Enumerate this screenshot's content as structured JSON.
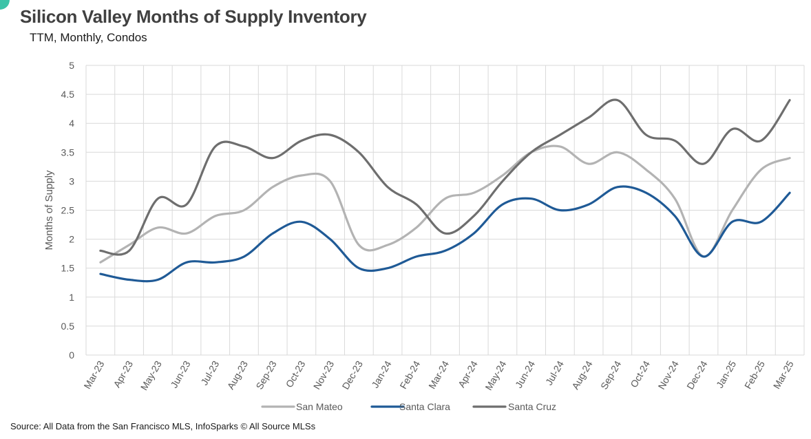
{
  "chart_data": {
    "type": "line",
    "title": "Silicon Valley Months of Supply Inventory",
    "subtitle": "TTM, Monthly, Condos",
    "ylabel": "Months of Supply",
    "xlabel": "",
    "ylim": [
      0,
      5
    ],
    "yticks": [
      "0",
      "0.5",
      "1",
      "1.5",
      "2",
      "2.5",
      "3",
      "3.5",
      "4",
      "4.5",
      "5"
    ],
    "grid": true,
    "legend_position": "bottom",
    "categories": [
      "Mar-23",
      "Apr-23",
      "May-23",
      "Jun-23",
      "Jul-23",
      "Aug-23",
      "Sep-23",
      "Oct-23",
      "Nov-23",
      "Dec-23",
      "Jan-24",
      "Feb-24",
      "Mar-24",
      "Apr-24",
      "May-24",
      "Jun-24",
      "Jul-24",
      "Aug-24",
      "Sep-24",
      "Oct-24",
      "Nov-24",
      "Dec-24",
      "Jan-25",
      "Feb-25",
      "Mar-25"
    ],
    "series": [
      {
        "name": "San Mateo",
        "color": "#b3b3b3",
        "values": [
          1.6,
          1.9,
          2.2,
          2.1,
          2.4,
          2.5,
          2.9,
          3.1,
          3.0,
          1.9,
          1.9,
          2.2,
          2.7,
          2.8,
          3.1,
          3.5,
          3.6,
          3.3,
          3.5,
          3.2,
          2.7,
          1.7,
          2.5,
          3.2,
          3.4
        ]
      },
      {
        "name": "Santa Clara",
        "color": "#1f5a96",
        "values": [
          1.4,
          1.3,
          1.3,
          1.6,
          1.6,
          1.7,
          2.1,
          2.3,
          2.0,
          1.5,
          1.5,
          1.7,
          1.8,
          2.1,
          2.6,
          2.7,
          2.5,
          2.6,
          2.9,
          2.8,
          2.4,
          1.7,
          2.3,
          2.3,
          2.8
        ]
      },
      {
        "name": "Santa Cruz",
        "color": "#6e6e6e",
        "values": [
          1.8,
          1.8,
          2.7,
          2.6,
          3.6,
          3.6,
          3.4,
          3.7,
          3.8,
          3.5,
          2.9,
          2.6,
          2.1,
          2.4,
          3.0,
          3.5,
          3.8,
          4.1,
          4.4,
          3.8,
          3.7,
          3.3,
          3.9,
          3.7,
          4.4
        ]
      }
    ]
  },
  "source": "Source: All Data from the San Francisco MLS, InfoSparks © All Source MLSs"
}
